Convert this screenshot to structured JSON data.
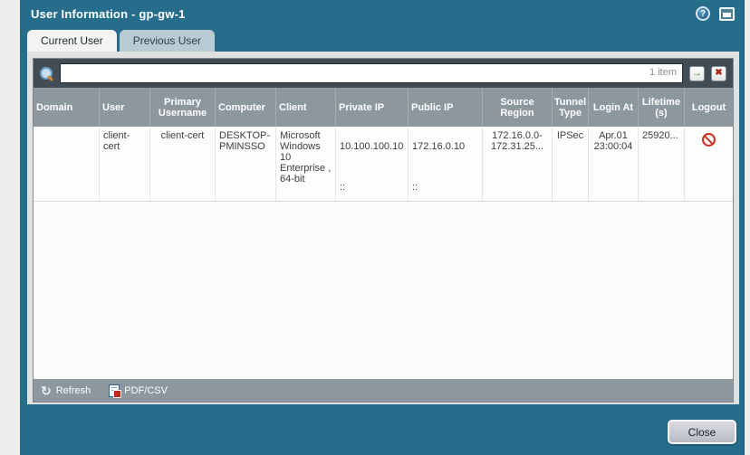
{
  "colors": {
    "titlebar_teal": "#266d8c",
    "tab_inactive": "#b8cad2",
    "tab_active": "#f3f3f1",
    "filter_bar": "#414c55",
    "table_header_gray": "#8d979e",
    "logout_red": "#c53022",
    "go_green": "#4f8f28",
    "clear_red": "#a8281a"
  },
  "window": {
    "title": "User Information - gp-gw-1",
    "close_label": "Close"
  },
  "icons": {
    "help_glyph": "?",
    "go_arrow_glyph": "→",
    "clear_glyph": "✖",
    "refresh_glyph": "↻"
  },
  "tabs": {
    "current": "Current User",
    "previous": "Previous User"
  },
  "filter": {
    "input_value": "",
    "item_count": "1 item"
  },
  "table": {
    "columns": [
      "Domain",
      "User",
      "Primary\nUsername",
      "Computer",
      "Client",
      "Private IP",
      "Public IP",
      "Source\nRegion",
      "Tunnel\nType",
      "Login At",
      "Lifetime\n(s)",
      "Logout"
    ],
    "row": {
      "domain": "",
      "user": "client-cert",
      "primary_username": "client-cert",
      "computer": "DESKTOP-PMINSSO",
      "client": "Microsoft Windows 10 Enterprise , 64-bit",
      "private_ip": "10.100.100.10",
      "private_ip_v6": "::",
      "public_ip": "172.16.0.10",
      "public_ip_v6": "::",
      "source_region": "172.16.0.0-172.31.25...",
      "tunnel_type": "IPSec",
      "login_at": "Apr.01\n23:00:04",
      "lifetime": "25920..."
    }
  },
  "footer": {
    "refresh_label": "Refresh",
    "export_label": "PDF/CSV"
  }
}
